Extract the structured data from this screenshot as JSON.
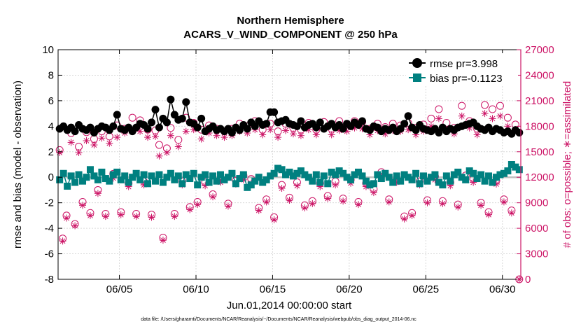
{
  "chart_data": {
    "type": "line",
    "title": "Northern Hemisphere",
    "subtitle": "ACARS_V_WIND_COMPONENT @ 250 hPa",
    "xlabel": "Jun.01,2014 00:00:00 start",
    "ylabel": "rmse and bias (model - observation)",
    "y2label": "# of obs: o=possible; ∗=assimilated",
    "footer": "data file: /Users/gharamti/Documents/NCAR/Reanalysis/~/Documents/NCAR/Reanalysis/webpub/obs_diag_output_2014-06.nc",
    "xlim": [
      1.0,
      31.2
    ],
    "ylim": [
      -8,
      10
    ],
    "y2lim": [
      0,
      27000
    ],
    "grid": true,
    "legend_position": "top-right",
    "xticks": [
      {
        "value": 5,
        "label": "06/05"
      },
      {
        "value": 10,
        "label": "06/10"
      },
      {
        "value": 15,
        "label": "06/15"
      },
      {
        "value": 20,
        "label": "06/20"
      },
      {
        "value": 25,
        "label": "06/25"
      },
      {
        "value": 30,
        "label": "06/30"
      }
    ],
    "yticks": [
      {
        "value": -8,
        "label": "-8"
      },
      {
        "value": -6,
        "label": "-6"
      },
      {
        "value": -4,
        "label": "-4"
      },
      {
        "value": -2,
        "label": "-2"
      },
      {
        "value": 0,
        "label": "0"
      },
      {
        "value": 2,
        "label": "2"
      },
      {
        "value": 4,
        "label": "4"
      },
      {
        "value": 6,
        "label": "6"
      },
      {
        "value": 8,
        "label": "8"
      },
      {
        "value": 10,
        "label": "10"
      }
    ],
    "y2ticks": [
      {
        "value": 0,
        "label": "0"
      },
      {
        "value": 3000,
        "label": "3000"
      },
      {
        "value": 6000,
        "label": "6000"
      },
      {
        "value": 9000,
        "label": "9000"
      },
      {
        "value": 12000,
        "label": "12000"
      },
      {
        "value": 15000,
        "label": "15000"
      },
      {
        "value": 18000,
        "label": "18000"
      },
      {
        "value": 21000,
        "label": "21000"
      },
      {
        "value": 24000,
        "label": "24000"
      },
      {
        "value": 27000,
        "label": "27000"
      }
    ],
    "series": [
      {
        "name": "rmse pr=3.998",
        "axis": "left",
        "color": "#000000",
        "marker": "circle",
        "x": [
          1.1,
          1.35,
          1.6,
          1.85,
          2.1,
          2.35,
          2.6,
          2.85,
          3.1,
          3.35,
          3.6,
          3.85,
          4.1,
          4.35,
          4.6,
          4.85,
          5.1,
          5.35,
          5.6,
          5.85,
          6.1,
          6.35,
          6.6,
          6.85,
          7.1,
          7.35,
          7.6,
          7.85,
          8.1,
          8.35,
          8.6,
          8.85,
          9.1,
          9.35,
          9.6,
          9.85,
          10.1,
          10.35,
          10.6,
          10.85,
          11.1,
          11.35,
          11.6,
          11.85,
          12.1,
          12.35,
          12.6,
          12.85,
          13.1,
          13.35,
          13.6,
          13.85,
          14.1,
          14.35,
          14.6,
          14.85,
          15.1,
          15.35,
          15.6,
          15.85,
          16.1,
          16.35,
          16.6,
          16.85,
          17.1,
          17.35,
          17.6,
          17.85,
          18.1,
          18.35,
          18.6,
          18.85,
          19.1,
          19.35,
          19.6,
          19.85,
          20.1,
          20.35,
          20.6,
          20.85,
          21.1,
          21.35,
          21.6,
          21.85,
          22.1,
          22.35,
          22.6,
          22.85,
          23.1,
          23.35,
          23.6,
          23.85,
          24.1,
          24.35,
          24.6,
          24.85,
          25.1,
          25.35,
          25.6,
          25.85,
          26.1,
          26.35,
          26.6,
          26.85,
          27.1,
          27.35,
          27.6,
          27.85,
          28.1,
          28.35,
          28.6,
          28.85,
          29.1,
          29.35,
          29.6,
          29.85,
          30.1,
          30.35,
          30.6,
          30.85,
          31.1
        ],
        "values": [
          3.8,
          4.0,
          3.7,
          3.9,
          3.6,
          4.1,
          3.8,
          3.7,
          3.9,
          3.5,
          3.8,
          4.0,
          3.9,
          3.7,
          4.0,
          4.9,
          3.8,
          3.7,
          3.9,
          3.6,
          3.9,
          4.2,
          4.1,
          3.8,
          4.3,
          5.3,
          3.9,
          4.6,
          4.3,
          6.1,
          4.9,
          4.5,
          4.6,
          5.9,
          4.3,
          4.2,
          3.9,
          4.6,
          3.6,
          3.8,
          4.0,
          3.7,
          3.8,
          3.6,
          3.8,
          3.5,
          3.9,
          3.7,
          4.1,
          3.8,
          4.3,
          4.0,
          4.4,
          4.1,
          4.2,
          5.1,
          5.1,
          4.3,
          4.4,
          4.5,
          4.2,
          4.1,
          4.0,
          4.4,
          3.9,
          4.1,
          4.2,
          3.9,
          4.3,
          3.8,
          4.0,
          4.2,
          3.9,
          4.1,
          3.8,
          4.2,
          4.0,
          4.3,
          4.1,
          4.4,
          3.8,
          3.7,
          4.0,
          3.9,
          3.6,
          3.8,
          3.7,
          3.9,
          3.6,
          3.8,
          4.2,
          4.8,
          3.9,
          3.7,
          4.1,
          3.8,
          3.7,
          3.6,
          3.8,
          3.5,
          3.9,
          3.6,
          3.8,
          3.7,
          3.9,
          4.0,
          4.1,
          4.2,
          4.3,
          4.0,
          3.8,
          3.7,
          3.9,
          3.6,
          3.8,
          3.7,
          3.5,
          3.6,
          3.4,
          3.7,
          3.5
        ]
      },
      {
        "name": "bias pr=-0.1123",
        "axis": "left",
        "color": "#008080",
        "marker": "square",
        "x": [
          1.1,
          1.35,
          1.6,
          1.85,
          2.1,
          2.35,
          2.6,
          2.85,
          3.1,
          3.35,
          3.6,
          3.85,
          4.1,
          4.35,
          4.6,
          4.85,
          5.1,
          5.35,
          5.6,
          5.85,
          6.1,
          6.35,
          6.6,
          6.85,
          7.1,
          7.35,
          7.6,
          7.85,
          8.1,
          8.35,
          8.6,
          8.85,
          9.1,
          9.35,
          9.6,
          9.85,
          10.1,
          10.35,
          10.6,
          10.85,
          11.1,
          11.35,
          11.6,
          11.85,
          12.1,
          12.35,
          12.6,
          12.85,
          13.1,
          13.35,
          13.6,
          13.85,
          14.1,
          14.35,
          14.6,
          14.85,
          15.1,
          15.35,
          15.6,
          15.85,
          16.1,
          16.35,
          16.6,
          16.85,
          17.1,
          17.35,
          17.6,
          17.85,
          18.1,
          18.35,
          18.6,
          18.85,
          19.1,
          19.35,
          19.6,
          19.85,
          20.1,
          20.35,
          20.6,
          20.85,
          21.1,
          21.35,
          21.6,
          21.85,
          22.1,
          22.35,
          22.6,
          22.85,
          23.1,
          23.35,
          23.6,
          23.85,
          24.1,
          24.35,
          24.6,
          24.85,
          25.1,
          25.35,
          25.6,
          25.85,
          26.1,
          26.35,
          26.6,
          26.85,
          27.1,
          27.35,
          27.6,
          27.85,
          28.1,
          28.35,
          28.6,
          28.85,
          29.1,
          29.35,
          29.6,
          29.85,
          30.1,
          30.35,
          30.6,
          30.85,
          31.1
        ],
        "values": [
          -0.2,
          0.3,
          -0.7,
          0.1,
          -0.4,
          0.2,
          -0.3,
          0.0,
          0.6,
          0.1,
          -0.2,
          0.4,
          -0.1,
          -0.3,
          0.2,
          0.4,
          -0.2,
          0.1,
          -0.4,
          0.0,
          0.3,
          -0.2,
          0.2,
          -0.5,
          0.1,
          -0.3,
          0.2,
          -0.4,
          0.0,
          0.3,
          -0.2,
          0.1,
          -0.5,
          0.2,
          -0.1,
          0.3,
          -0.6,
          0.0,
          0.2,
          -0.4,
          0.1,
          -0.3,
          0.2,
          -0.2,
          0.0,
          0.3,
          -0.5,
          -0.1,
          0.2,
          -0.8,
          -0.6,
          -0.3,
          0.0,
          -0.4,
          -0.2,
          0.1,
          0.3,
          0.7,
          0.6,
          0.2,
          0.4,
          0.1,
          0.3,
          0.5,
          0.2,
          0.0,
          -0.3,
          0.2,
          -0.4,
          0.1,
          -0.5,
          0.4,
          0.2,
          0.5,
          0.3,
          0.0,
          -0.2,
          0.2,
          0.4,
          0.1,
          -0.3,
          -0.6,
          -0.5,
          0.2,
          -0.1,
          0.3,
          0.0,
          -0.4,
          0.1,
          -0.3,
          0.2,
          0.0,
          -0.2,
          0.3,
          -0.5,
          0.1,
          -0.3,
          0.0,
          0.2,
          -0.4,
          -0.6,
          0.1,
          -0.3,
          0.2,
          0.4,
          0.0,
          -0.2,
          0.5,
          0.3,
          -0.1,
          0.2,
          -0.3,
          0.1,
          -0.4,
          0.0,
          0.2,
          0.3,
          0.5,
          1.0,
          0.8,
          0.6
        ]
      },
      {
        "name": "possible",
        "axis": "right",
        "color": "#cc1466",
        "marker": "open-circle",
        "x": [
          1.1,
          1.3,
          1.55,
          1.85,
          2.1,
          2.35,
          2.6,
          2.85,
          3.1,
          3.35,
          3.6,
          3.85,
          4.1,
          4.35,
          4.6,
          4.85,
          5.1,
          5.35,
          5.6,
          5.85,
          6.1,
          6.35,
          6.6,
          6.85,
          7.1,
          7.35,
          7.6,
          7.85,
          8.1,
          8.35,
          8.6,
          8.85,
          9.1,
          9.35,
          9.6,
          9.85,
          10.1,
          10.35,
          10.6,
          10.85,
          11.1,
          11.35,
          11.6,
          11.85,
          12.1,
          12.35,
          12.6,
          12.85,
          13.1,
          13.35,
          13.6,
          13.85,
          14.1,
          14.35,
          14.6,
          14.85,
          15.1,
          15.35,
          15.6,
          15.85,
          16.1,
          16.35,
          16.6,
          16.85,
          17.1,
          17.35,
          17.6,
          17.85,
          18.1,
          18.35,
          18.6,
          18.85,
          19.1,
          19.35,
          19.6,
          19.85,
          20.1,
          20.35,
          20.6,
          20.85,
          21.1,
          21.35,
          21.6,
          21.85,
          22.1,
          22.35,
          22.6,
          22.85,
          23.1,
          23.35,
          23.6,
          23.85,
          24.1,
          24.35,
          24.6,
          24.85,
          25.1,
          25.35,
          25.6,
          25.85,
          26.1,
          26.35,
          26.6,
          26.85,
          27.1,
          27.35,
          27.6,
          27.85,
          28.1,
          28.35,
          28.6,
          28.85,
          29.1,
          29.35,
          29.6,
          29.85,
          30.1,
          30.35,
          30.6,
          30.85,
          31.1
        ],
        "values": [
          15200,
          4800,
          7500,
          17200,
          6500,
          15600,
          9100,
          17300,
          7800,
          16500,
          10500,
          17400,
          7700,
          16800,
          12400,
          18100,
          7900,
          17700,
          11300,
          19000,
          7700,
          18700,
          11500,
          17600,
          7600,
          17500,
          15800,
          4900,
          15400,
          17800,
          7700,
          16400,
          11500,
          19000,
          8500,
          18400,
          9100,
          17600,
          11400,
          18100,
          10000,
          17700,
          11800,
          17400,
          8900,
          17700,
          11600,
          18300,
          12200,
          18000,
          11800,
          18600,
          8400,
          17600,
          9400,
          18300,
          7300,
          17400,
          11100,
          18300,
          9600,
          17800,
          11400,
          17600,
          8700,
          18400,
          9200,
          17600,
          11300,
          18500,
          9800,
          17700,
          11500,
          18600,
          9500,
          18200,
          11700,
          18600,
          9100,
          18500,
          11300,
          17700,
          10600,
          18300,
          12600,
          17900,
          9400,
          18300,
          11800,
          18100,
          7400,
          18400,
          7800,
          17800,
          11500,
          18200,
          9300,
          18900,
          12100,
          20000,
          9200,
          18400,
          11400,
          17800,
          8800,
          20400,
          12200,
          18600,
          11800,
          17700,
          9000,
          20500,
          7900,
          20000,
          11600,
          20400,
          9400,
          19000,
          8100,
          18200,
          0
        ]
      },
      {
        "name": "assimilated",
        "axis": "right",
        "color": "#cc1466",
        "marker": "asterisk",
        "x": [
          1.1,
          1.3,
          1.55,
          1.85,
          2.1,
          2.35,
          2.6,
          2.85,
          3.1,
          3.35,
          3.6,
          3.85,
          4.1,
          4.35,
          4.6,
          4.85,
          5.1,
          5.35,
          5.6,
          5.85,
          6.1,
          6.35,
          6.6,
          6.85,
          7.1,
          7.35,
          7.6,
          7.85,
          8.1,
          8.35,
          8.6,
          8.85,
          9.1,
          9.35,
          9.6,
          9.85,
          10.1,
          10.35,
          10.6,
          10.85,
          11.1,
          11.35,
          11.6,
          11.85,
          12.1,
          12.35,
          12.6,
          12.85,
          13.1,
          13.35,
          13.6,
          13.85,
          14.1,
          14.35,
          14.6,
          14.85,
          15.1,
          15.35,
          15.6,
          15.85,
          16.1,
          16.35,
          16.6,
          16.85,
          17.1,
          17.35,
          17.6,
          17.85,
          18.1,
          18.35,
          18.6,
          18.85,
          19.1,
          19.35,
          19.6,
          19.85,
          20.1,
          20.35,
          20.6,
          20.85,
          21.1,
          21.35,
          21.6,
          21.85,
          22.1,
          22.35,
          22.6,
          22.85,
          23.1,
          23.35,
          23.6,
          23.85,
          24.1,
          24.35,
          24.6,
          24.85,
          25.1,
          25.35,
          25.6,
          25.85,
          26.1,
          26.35,
          26.6,
          26.85,
          27.1,
          27.35,
          27.6,
          27.85,
          28.1,
          28.35,
          28.6,
          28.85,
          29.1,
          29.35,
          29.6,
          29.85,
          30.1,
          30.35,
          30.6,
          30.85,
          31.1
        ],
        "values": [
          14900,
          4500,
          7200,
          16100,
          6300,
          14900,
          8700,
          16300,
          7500,
          15800,
          10100,
          16600,
          7400,
          16000,
          11900,
          16700,
          7600,
          17200,
          10900,
          17500,
          7400,
          17400,
          11100,
          16700,
          7300,
          16800,
          14500,
          4600,
          14900,
          16900,
          7400,
          15600,
          11100,
          17400,
          8200,
          17600,
          8800,
          16500,
          11000,
          17200,
          9700,
          16900,
          11400,
          16700,
          8600,
          16900,
          11200,
          17400,
          11700,
          17200,
          11300,
          17600,
          8100,
          17000,
          9100,
          17600,
          7000,
          16700,
          10700,
          17500,
          9300,
          17100,
          11000,
          16900,
          8400,
          17600,
          8900,
          17000,
          10900,
          17700,
          9500,
          17000,
          11100,
          17500,
          9200,
          17400,
          11300,
          17800,
          8800,
          17700,
          10900,
          17000,
          10200,
          17500,
          12100,
          17100,
          9100,
          17500,
          11400,
          17400,
          7100,
          17600,
          7500,
          17000,
          11100,
          17400,
          9000,
          18000,
          11700,
          18900,
          8900,
          17600,
          11000,
          17100,
          8500,
          19200,
          11700,
          17800,
          11400,
          17000,
          8700,
          19500,
          7600,
          18900,
          11200,
          19200,
          9100,
          18000,
          7800,
          17600,
          0
        ]
      }
    ]
  }
}
